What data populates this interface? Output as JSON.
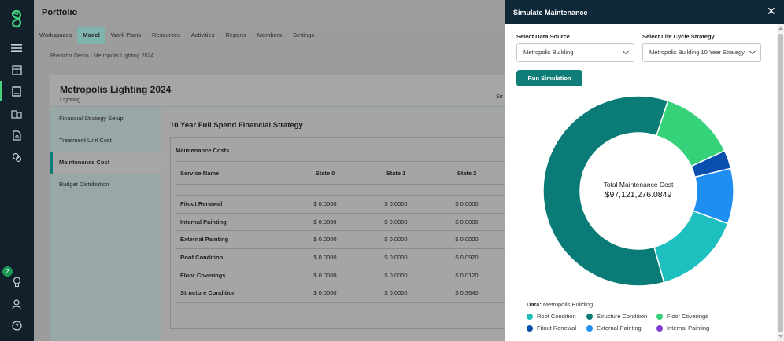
{
  "app": {
    "title": "Portfolio",
    "notification_count": "2"
  },
  "rail": {
    "icons": [
      "logo-icon",
      "menu-icon",
      "inventory-icon",
      "model-icon",
      "buildings-icon",
      "document-icon",
      "analytics-icon",
      "lightbulb-icon",
      "user-icon",
      "help-icon"
    ]
  },
  "nav": {
    "tabs": [
      {
        "label": "Workspaces"
      },
      {
        "label": "Model"
      },
      {
        "label": "Work Plans"
      },
      {
        "label": "Resources"
      },
      {
        "label": "Activities"
      },
      {
        "label": "Reports"
      },
      {
        "label": "Members"
      },
      {
        "label": "Settings"
      }
    ],
    "selected": "Model"
  },
  "breadcrumb": "Predictor Demo › Metropolis Lighting 2024",
  "card": {
    "title": "Metropolis Lighting 2024",
    "subtitle": "Lighting",
    "right_label": "Sir"
  },
  "sidebar": {
    "items": [
      {
        "label": "Financial Strategy Setup"
      },
      {
        "label": "Treatment Unit Cost"
      },
      {
        "label": "Maintenance Cost"
      },
      {
        "label": "Budget Distribution"
      }
    ],
    "selected": "Maintenance Cost"
  },
  "strategy_title": "10 Year Full Spend Financial Strategy",
  "maintenance": {
    "label": "Maintenance Costs",
    "columns": [
      "Service Name",
      "State 0",
      "State 1",
      "State 2"
    ],
    "rows": [
      [
        "Fitout Renewal",
        "$ 0.0000",
        "$ 0.0000",
        "$ 0.0000"
      ],
      [
        "Internal Painting",
        "$ 0.0000",
        "$ 0.0000",
        "$ 0.0000"
      ],
      [
        "External Painting",
        "$ 0.0000",
        "$ 0.0000",
        "$ 0.0000"
      ],
      [
        "Roof Condition",
        "$ 0.0000",
        "$ 0.0000",
        "$ 0.0920"
      ],
      [
        "Floor Coverings",
        "$ 0.0000",
        "$ 0.0000",
        "$ 0.0120"
      ],
      [
        "Structure Condition",
        "$ 0.0000",
        "$ 0.0000",
        "$ 0.3640"
      ]
    ]
  },
  "modal": {
    "title": "Simulate Maintenance",
    "close": "✕",
    "data_source_label": "Select Data Source",
    "data_source_value": "Metropolis Building",
    "strategy_label": "Select Life Cycle Strategy",
    "strategy_value": "Metropolis Building 10 Year Strategy",
    "run_label": "Run Simulation",
    "center_label": "Total Maintenance Cost",
    "center_value": "$97,121,276.0849",
    "data_prefix": "Data:",
    "data_value": "Metropolis Building"
  },
  "chart_data": {
    "type": "pie",
    "title": "",
    "categories": [
      "Roof Condition",
      "Structure Condition",
      "Floor Coverings",
      "Fitout Renewal",
      "External Painting",
      "Internal Painting"
    ],
    "values": [
      14.5,
      57.0,
      12.5,
      3.0,
      9.0,
      0.0
    ],
    "unit": "percent of total (estimated)",
    "colors": [
      "#1dbfbf",
      "#0b7b77",
      "#36d27a",
      "#0a4fae",
      "#1e8ff0",
      "#7c3fd0"
    ],
    "legend_position": "bottom"
  }
}
